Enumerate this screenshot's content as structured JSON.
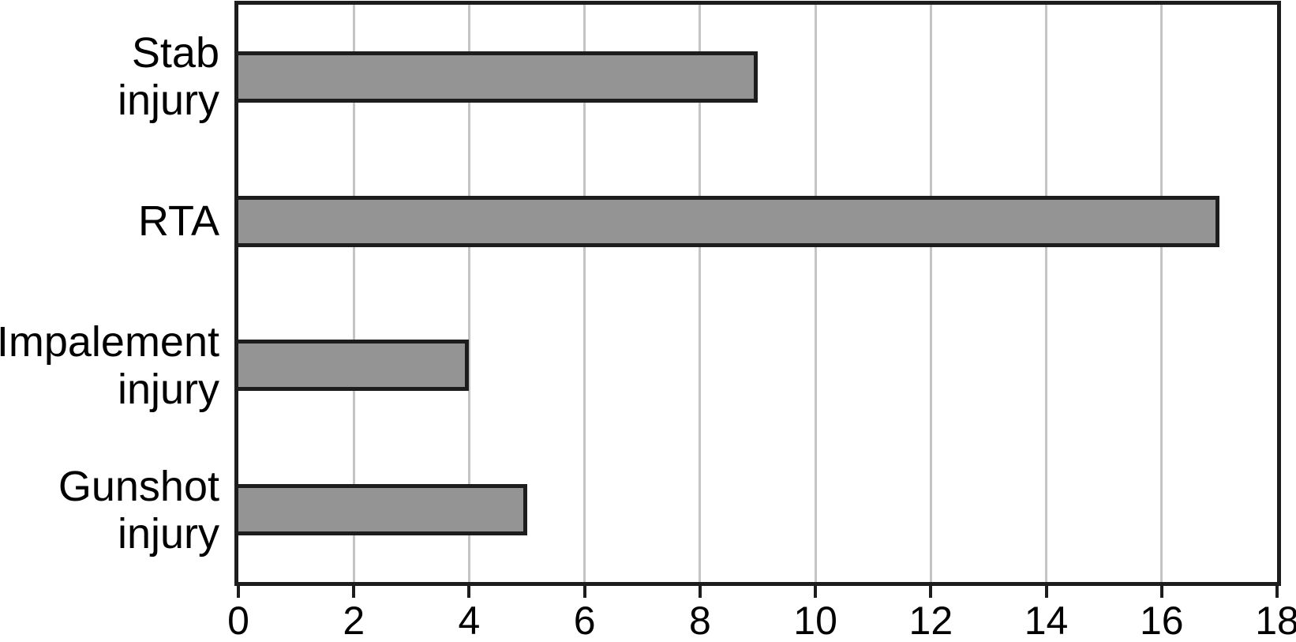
{
  "chart_data": {
    "type": "bar",
    "orientation": "horizontal",
    "title": "",
    "xlabel": "",
    "ylabel": "",
    "categories": [
      "Stab\ninjury",
      "RTA",
      "Impalement\ninjury",
      "Gunshot\ninjury"
    ],
    "values": [
      9,
      17,
      4,
      5
    ],
    "xlim": [
      0,
      18
    ],
    "xticks": [
      0,
      2,
      4,
      6,
      8,
      10,
      12,
      14,
      16,
      18
    ],
    "grid": "vertical-at-xticks",
    "legend": "none",
    "colors": {
      "bar_fill": "#949494",
      "bar_border": "#1d1d1d",
      "axis_border": "#1d1d1d",
      "gridline": "#c4c4c4",
      "text": "#000000",
      "background": "#ffffff"
    }
  }
}
